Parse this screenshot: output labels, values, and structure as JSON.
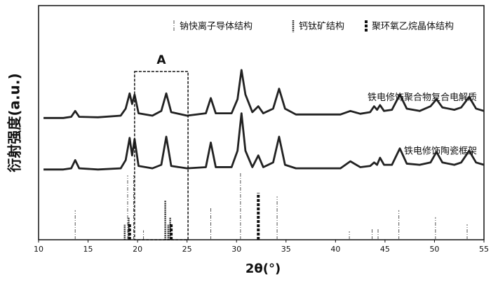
{
  "chart_data": {
    "type": "line",
    "xlabel": "2θ(°)",
    "ylabel": "衍射强度(a.u.)",
    "xlim": [
      10,
      55
    ],
    "xticks": [
      10,
      15,
      20,
      25,
      30,
      35,
      40,
      45,
      50,
      55
    ],
    "ylim": [
      0,
      100
    ],
    "legend_position": "top",
    "x": [
      10.5,
      12.5,
      13.3,
      13.7,
      14.1,
      16,
      18.3,
      18.8,
      19.2,
      19.45,
      19.7,
      20.1,
      21.5,
      22.4,
      22.9,
      23.4,
      25,
      26.9,
      27.4,
      27.9,
      29.5,
      30.1,
      30.5,
      30.9,
      31.6,
      32.2,
      32.7,
      33.7,
      34.3,
      34.9,
      36,
      38,
      40.5,
      41.5,
      42.5,
      43.5,
      43.9,
      44.2,
      44.5,
      44.9,
      45.7,
      46.5,
      47.2,
      48.5,
      49.6,
      50.2,
      50.8,
      52,
      52.7,
      53.5,
      54.2,
      55
    ],
    "series": [
      {
        "name": "铁电修饰聚合物复合电解质",
        "color": "#222222",
        "values": [
          52,
          52,
          52.5,
          55,
          52.5,
          52.3,
          53,
          56,
          62.5,
          58,
          62,
          54,
          53,
          55,
          62.5,
          54.5,
          53,
          54,
          60.5,
          54,
          54,
          60,
          72.5,
          62,
          54.5,
          57,
          54,
          56,
          64.5,
          56,
          53.5,
          53.5,
          53.5,
          55,
          53.8,
          54.5,
          57,
          55.5,
          57.5,
          55,
          55.5,
          62,
          56,
          55,
          57,
          60,
          56.5,
          55.5,
          56.5,
          61,
          56,
          55
        ]
      },
      {
        "name": "铁电修饰陶瓷框架",
        "color": "#222222",
        "values": [
          30,
          30,
          30.5,
          34,
          30.5,
          30,
          30.5,
          34,
          43.5,
          36,
          43,
          31.5,
          30.5,
          32,
          44,
          31.5,
          30.5,
          31,
          41.5,
          31,
          31,
          38,
          54,
          38,
          31,
          36,
          31,
          33,
          44,
          32,
          30.5,
          30.5,
          30.5,
          33.5,
          31,
          31.5,
          33,
          32,
          35,
          32,
          32,
          39,
          32.5,
          32,
          33,
          37.5,
          33,
          32,
          33,
          38,
          33,
          32
        ]
      }
    ],
    "reference_patterns": [
      {
        "name": "钠快离子导体结构",
        "style": "dash-dot",
        "color": "#555555",
        "positions": [
          13.7,
          19.0,
          19.6,
          20.6,
          27.4,
          30.4,
          34.1,
          41.4,
          43.7,
          44.3,
          46.4,
          50.1,
          53.3
        ],
        "heights": [
          12.6,
          27.5,
          27.5,
          4,
          13.5,
          29,
          18.5,
          3.6,
          5,
          5,
          12.6,
          9.6,
          6.6
        ]
      },
      {
        "name": "钙钛矿结构",
        "style": "dotted",
        "color": "#111111",
        "positions": [
          18.7,
          19.1,
          22.8,
          23.1,
          23.3
        ],
        "heights": [
          6.6,
          9.6,
          17,
          6.6,
          9.6
        ]
      },
      {
        "name": "聚环氧乙烷晶体结构",
        "style": "dashed",
        "color": "#111111",
        "positions": [
          19.2,
          23.4,
          32.2
        ],
        "heights": [
          6.6,
          6.6,
          20
        ]
      }
    ],
    "annotation": {
      "label": "A",
      "x_range": [
        19.7,
        25.1
      ]
    }
  }
}
